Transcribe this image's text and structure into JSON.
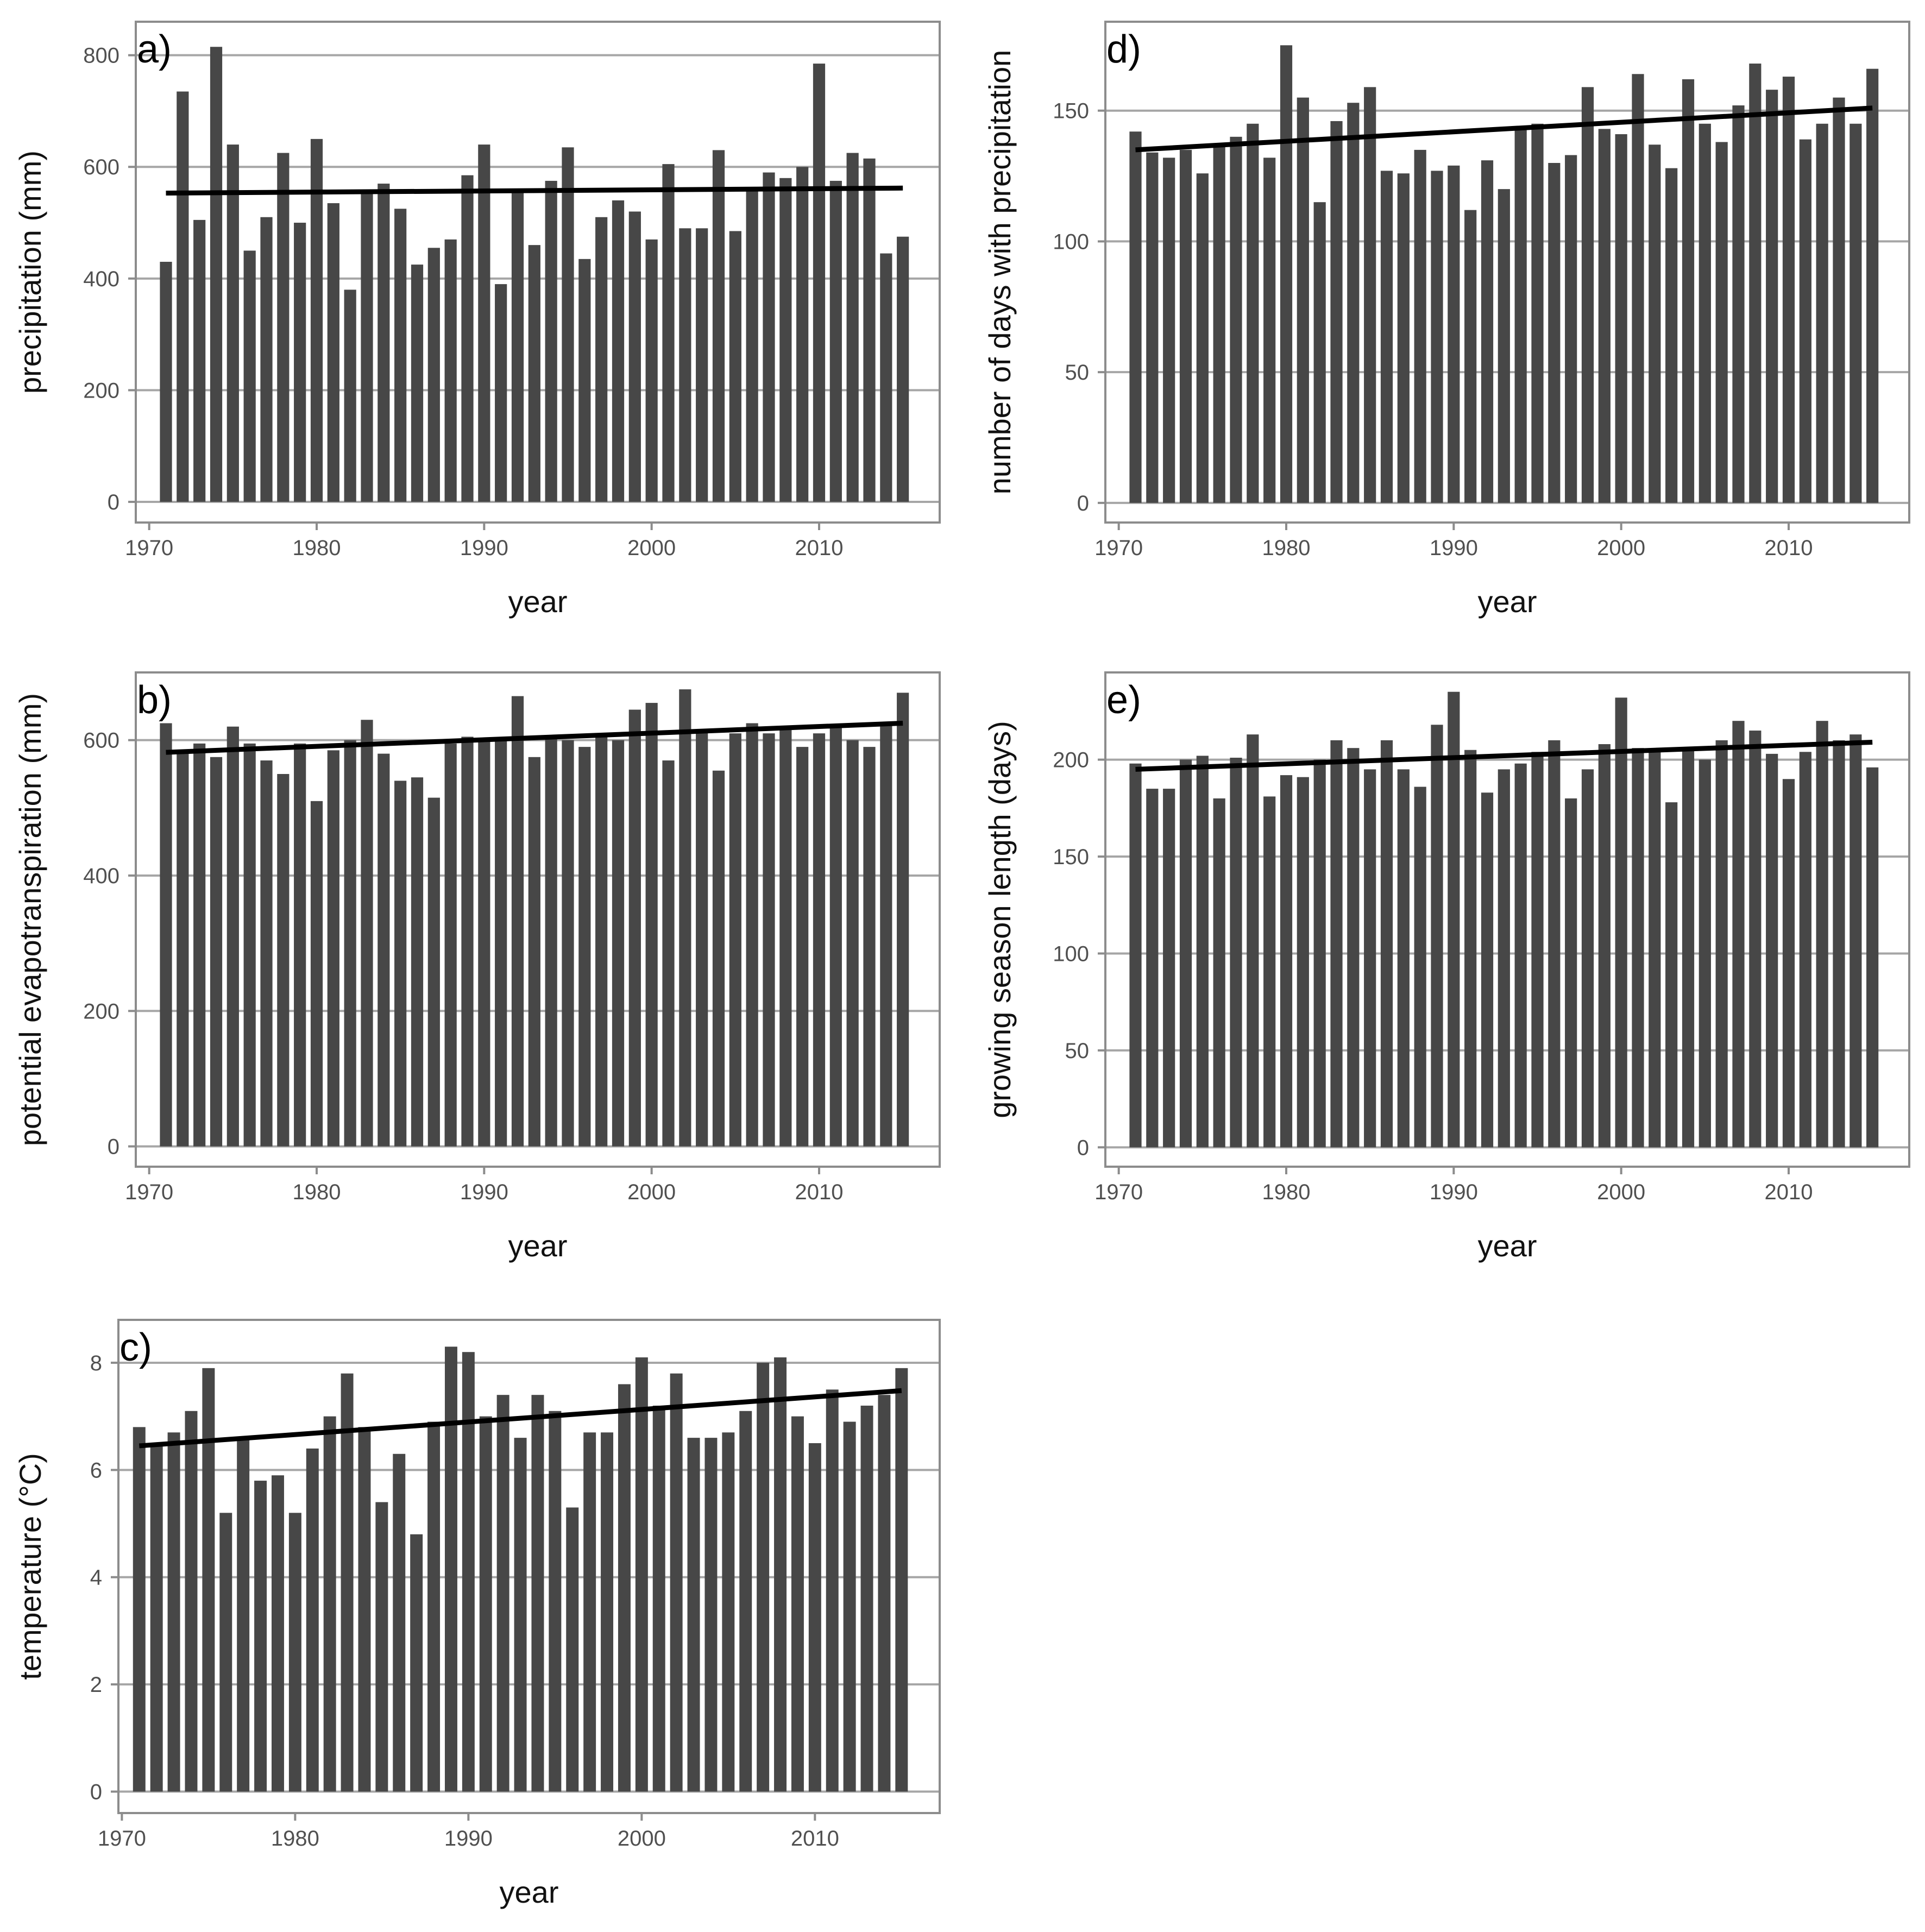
{
  "figure": {
    "colors": {
      "bar": "#474747",
      "trend": "#000000",
      "grid": "#a6a6a6",
      "frame": "#8c8c8c"
    }
  },
  "chart_data": [
    {
      "id": "a",
      "type": "bar",
      "panel_label": "a)",
      "title": "",
      "xlabel": "year",
      "ylabel": "precipitation (mm)",
      "x": [
        1971,
        1972,
        1973,
        1974,
        1975,
        1976,
        1977,
        1978,
        1979,
        1980,
        1981,
        1982,
        1983,
        1984,
        1985,
        1986,
        1987,
        1988,
        1989,
        1990,
        1991,
        1992,
        1993,
        1994,
        1995,
        1996,
        1997,
        1998,
        1999,
        2000,
        2001,
        2002,
        2003,
        2004,
        2005,
        2006,
        2007,
        2008,
        2009,
        2010,
        2011,
        2012,
        2013,
        2014,
        2015
      ],
      "values": [
        430,
        735,
        505,
        815,
        640,
        450,
        510,
        625,
        500,
        650,
        535,
        380,
        555,
        570,
        525,
        425,
        455,
        470,
        585,
        640,
        390,
        555,
        460,
        575,
        635,
        435,
        510,
        540,
        520,
        470,
        605,
        490,
        490,
        630,
        485,
        560,
        590,
        580,
        600,
        785,
        575,
        625,
        615,
        445,
        475
      ],
      "trend": {
        "x": [
          1971,
          2015
        ],
        "y": [
          553,
          562
        ]
      },
      "xticks": [
        1970,
        1980,
        1990,
        2000,
        2010
      ],
      "yticks": [
        0,
        200,
        400,
        600,
        800
      ],
      "xlim": [
        1969.2,
        2017.2
      ],
      "ylim": [
        -37,
        860
      ],
      "grid": true
    },
    {
      "id": "b",
      "type": "bar",
      "panel_label": "b)",
      "title": "",
      "xlabel": "year",
      "ylabel": "potential evapotranspiration (mm)",
      "x": [
        1971,
        1972,
        1973,
        1974,
        1975,
        1976,
        1977,
        1978,
        1979,
        1980,
        1981,
        1982,
        1983,
        1984,
        1985,
        1986,
        1987,
        1988,
        1989,
        1990,
        1991,
        1992,
        1993,
        1994,
        1995,
        1996,
        1997,
        1998,
        1999,
        2000,
        2001,
        2002,
        2003,
        2004,
        2005,
        2006,
        2007,
        2008,
        2009,
        2010,
        2011,
        2012,
        2013,
        2014,
        2015
      ],
      "values": [
        625,
        585,
        595,
        575,
        620,
        595,
        570,
        550,
        595,
        510,
        585,
        600,
        630,
        580,
        540,
        545,
        515,
        595,
        605,
        600,
        600,
        665,
        575,
        605,
        600,
        590,
        605,
        600,
        645,
        655,
        570,
        675,
        615,
        555,
        610,
        625,
        610,
        615,
        590,
        610,
        620,
        600,
        590,
        625,
        670
      ],
      "trend": {
        "x": [
          1971,
          2015
        ],
        "y": [
          582,
          625
        ]
      },
      "xticks": [
        1970,
        1980,
        1990,
        2000,
        2010
      ],
      "yticks": [
        0,
        200,
        400,
        600
      ],
      "xlim": [
        1969.2,
        2017.2
      ],
      "ylim": [
        -30,
        700
      ],
      "grid": true
    },
    {
      "id": "c",
      "type": "bar",
      "panel_label": "c)",
      "title": "",
      "xlabel": "year",
      "ylabel": "temperature (°C)",
      "x": [
        1971,
        1972,
        1973,
        1974,
        1975,
        1976,
        1977,
        1978,
        1979,
        1980,
        1981,
        1982,
        1983,
        1984,
        1985,
        1986,
        1987,
        1988,
        1989,
        1990,
        1991,
        1992,
        1993,
        1994,
        1995,
        1996,
        1997,
        1998,
        1999,
        2000,
        2001,
        2002,
        2003,
        2004,
        2005,
        2006,
        2007,
        2008,
        2009,
        2010,
        2011,
        2012,
        2013,
        2014,
        2015
      ],
      "values": [
        6.8,
        6.5,
        6.7,
        7.1,
        7.9,
        5.2,
        6.6,
        5.8,
        5.9,
        5.2,
        6.4,
        7.0,
        7.8,
        6.8,
        5.4,
        6.3,
        4.8,
        6.9,
        8.3,
        8.2,
        7.0,
        7.4,
        6.6,
        7.4,
        7.1,
        5.3,
        6.7,
        6.7,
        7.6,
        8.1,
        7.2,
        7.8,
        6.6,
        6.6,
        6.7,
        7.1,
        8.0,
        8.1,
        7.0,
        6.5,
        7.5,
        6.9,
        7.2,
        7.4,
        7.9
      ],
      "trend": {
        "x": [
          1971,
          2015
        ],
        "y": [
          6.45,
          7.48
        ]
      },
      "xticks": [
        1970,
        1980,
        1990,
        2000,
        2010
      ],
      "yticks": [
        0,
        2,
        4,
        6,
        8
      ],
      "xlim": [
        1969.8,
        2017.2
      ],
      "ylim": [
        -0.4,
        8.8
      ],
      "grid": true
    },
    {
      "id": "d",
      "type": "bar",
      "panel_label": "d)",
      "title": "",
      "xlabel": "year",
      "ylabel": "number of days with precipitation",
      "x": [
        1971,
        1972,
        1973,
        1974,
        1975,
        1976,
        1977,
        1978,
        1979,
        1980,
        1981,
        1982,
        1983,
        1984,
        1985,
        1986,
        1987,
        1988,
        1989,
        1990,
        1991,
        1992,
        1993,
        1994,
        1995,
        1996,
        1997,
        1998,
        1999,
        2000,
        2001,
        2002,
        2003,
        2004,
        2005,
        2006,
        2007,
        2008,
        2009,
        2010,
        2011,
        2012,
        2013,
        2014,
        2015
      ],
      "values": [
        142,
        134,
        132,
        135,
        126,
        137,
        140,
        145,
        132,
        175,
        155,
        115,
        146,
        153,
        159,
        127,
        126,
        135,
        127,
        129,
        112,
        131,
        120,
        144,
        145,
        130,
        133,
        159,
        143,
        141,
        164,
        137,
        128,
        162,
        145,
        138,
        152,
        168,
        158,
        163,
        139,
        145,
        155,
        145,
        166
      ],
      "trend": {
        "x": [
          1971,
          2015
        ],
        "y": [
          135,
          151
        ]
      },
      "xticks": [
        1970,
        1980,
        1990,
        2000,
        2010
      ],
      "yticks": [
        0,
        50,
        100,
        150
      ],
      "xlim": [
        1969.2,
        2017.2
      ],
      "ylim": [
        -7.5,
        184
      ],
      "grid": true
    },
    {
      "id": "e",
      "type": "bar",
      "panel_label": "e)",
      "title": "",
      "xlabel": "year",
      "ylabel": "growing season length (days)",
      "x": [
        1971,
        1972,
        1973,
        1974,
        1975,
        1976,
        1977,
        1978,
        1979,
        1980,
        1981,
        1982,
        1983,
        1984,
        1985,
        1986,
        1987,
        1988,
        1989,
        1990,
        1991,
        1992,
        1993,
        1994,
        1995,
        1996,
        1997,
        1998,
        1999,
        2000,
        2001,
        2002,
        2003,
        2004,
        2005,
        2006,
        2007,
        2008,
        2009,
        2010,
        2011,
        2012,
        2013,
        2014,
        2015
      ],
      "values": [
        198,
        185,
        185,
        200,
        202,
        180,
        201,
        213,
        181,
        192,
        191,
        200,
        210,
        206,
        195,
        210,
        195,
        186,
        218,
        235,
        205,
        183,
        195,
        198,
        204,
        210,
        180,
        195,
        208,
        232,
        206,
        204,
        178,
        205,
        200,
        210,
        220,
        215,
        203,
        190,
        204,
        220,
        210,
        213,
        196
      ],
      "trend": {
        "x": [
          1971,
          2015
        ],
        "y": [
          195,
          209
        ]
      },
      "xticks": [
        1970,
        1980,
        1990,
        2000,
        2010
      ],
      "yticks": [
        0,
        50,
        100,
        150,
        200
      ],
      "xlim": [
        1969.2,
        2017.2
      ],
      "ylim": [
        -10,
        245
      ],
      "grid": true
    }
  ]
}
